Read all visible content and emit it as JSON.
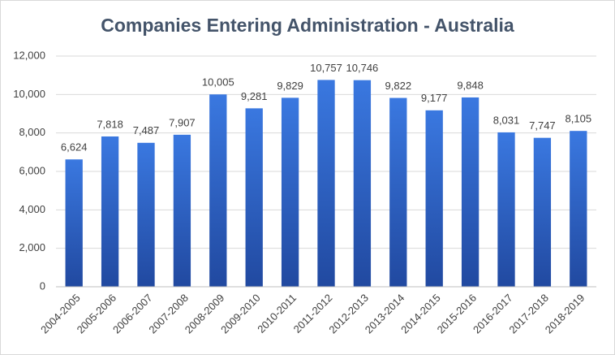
{
  "chart_data": {
    "type": "bar",
    "title": "Companies Entering Administration - Australia",
    "categories": [
      "2004-2005",
      "2005-2006",
      "2006-2007",
      "2007-2008",
      "2008-2009",
      "2009-2010",
      "2010-2011",
      "2011-2012",
      "2012-2013",
      "2013-2014",
      "2014-2015",
      "2015-2016",
      "2016-2017",
      "2017-2018",
      "2018-2019"
    ],
    "values": [
      6624,
      7818,
      7487,
      7907,
      10005,
      9281,
      9829,
      10757,
      10746,
      9822,
      9177,
      9848,
      8031,
      7747,
      8105
    ],
    "value_labels": [
      "6,624",
      "7,818",
      "7,487",
      "7,907",
      "10,005",
      "9,281",
      "9,829",
      "10,757",
      "10,746",
      "9,822",
      "9,177",
      "9,848",
      "8,031",
      "7,747",
      "8,105"
    ],
    "color": "#3066c8",
    "ylim": [
      0,
      12000
    ],
    "yticks": [
      0,
      {
        "value": 2000,
        "label": "2,000"
      },
      {
        "value": 4000,
        "label": "4,000"
      },
      {
        "value": 6000,
        "label": "6,000"
      },
      {
        "value": 8000,
        "label": "8,000"
      },
      {
        "value": 10000,
        "label": "10,000"
      },
      {
        "value": 12000,
        "label": "12,000"
      }
    ],
    "grid": true
  }
}
